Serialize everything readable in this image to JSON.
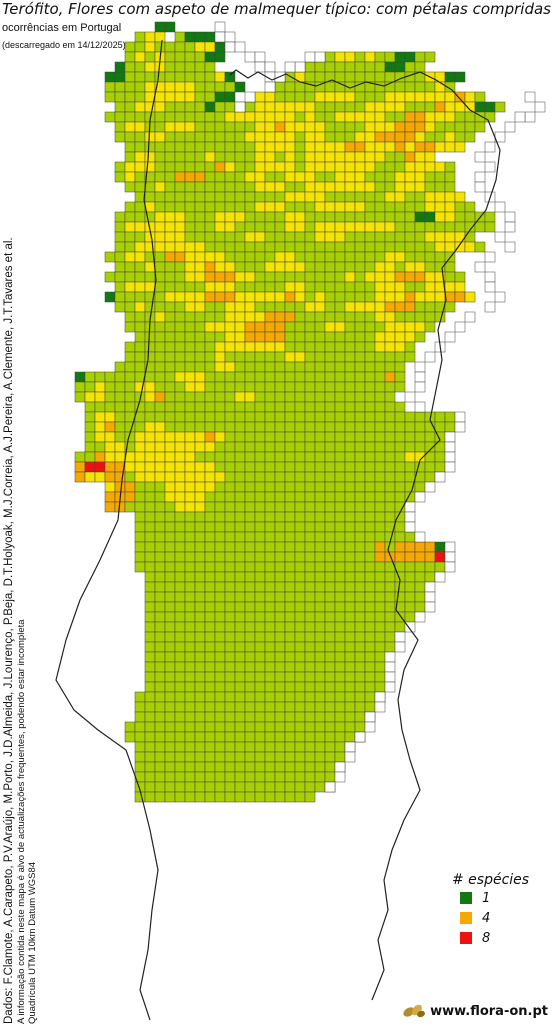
{
  "header": {
    "title": "Terófito, Flores com aspeto de malmequer típico: com pétalas compridas",
    "subtitle": "ocorrências em Portugal",
    "downloaded": "(descarregado em 14/12/2025)"
  },
  "credits": {
    "data_sources": "Dados: F.Clamote, A.Carapeto, P.V.Araújo, M.Porto, J.D.Almeida, J.Lourenço, P.Beja, D.T.Holyoak, M.J.Correia, A.J.Pereira, A.Clemente, J.T.Tavares et al.",
    "disclaimer": "A informação contida neste mapa é alvo de actualizações frequentes, podendo estar incompleta",
    "grid_info": "Quadrícula UTM 10km Datum WGS84"
  },
  "legend": {
    "title": "# espécies",
    "items": [
      {
        "label": "1",
        "color": "#127812"
      },
      {
        "label": "4",
        "color": "#f5a800"
      },
      {
        "label": "8",
        "color": "#ee1111"
      }
    ]
  },
  "footer": {
    "site": "www.flora-on.pt",
    "logo_icon": "flora-on-leaves-icon"
  },
  "colors": {
    "scale": [
      "#127812",
      "#a8cf00",
      "#f5e300",
      "#f5a800",
      "#ee1111"
    ],
    "grid_line": "#444444",
    "border": "#222222"
  },
  "map_rows": [
    "...........AA.......................................",
    ".........BCC.BAAA...................................",
    "........BBCBBBBCCA..................................",
    "........BCBCBBBBAA..........BCCBCBBAABB.............",
    ".......ABBCCBBBBB.........BBBBBBBBAABB..............",
    "......AABBBBBBBBBCA.....BCBBBBBBBBBBBBCCAA..........",
    "......BBBBCCCCCBBBBA...BBBBBBBBBBBBBBBBCB...........",
    "......BBBBCCCCCBBAA..CCBBBBCCCCBBBCCCCCCCDCB........",
    ".......BBCCCBBBBABBCBCCCCCCBBBBBCCCCBBBDCCCAAB.......",
    "......BBBBBBBBBBBBCCCCCCCBCBBCCCCCBBDDCCCBBBB.......",
    ".......BCCBBCCCBBBBBBCCDCCCCBBBBCCCDDDCBBBBB.........",
    ".......BBBCCBBBBBBBBCCCCCBCCBBBCCDDDDCBBCBB..........",
    "........BBBBBBBBBBBBBCCCCBCCCCDDCCCDCDDCCC...........",
    "........BCCBBBBBCBBBBCCBCBCCCCCCCCBBDCC..............",
    ".......BCCCBBBBBBDCBBCCCCBCCCCCCCBBBCCCCB............",
    ".......BCBBBBDDDBBBBCCBBCCCBBCCCBBBCCCBBB............",
    "........BBBCBBBBBBBBBCCCBBCCCCCCCBBCCCBBB............",
    ".........BBBBBBBBBBBBBBBCCCCBBBBBBCCBBCCCC...........",
    "........BBCBBBBBBBBBBCCCBBBCCCCCBBBBBBCCCBB..........",
    ".......BBBBCCCBBBCCCBBBBCCBBBBBBBBBBBAACCBBBB........",
    ".......BCCCCCCBBBCCBBBBBCCBCCCCCCCCBBBBBBBBBB........",
    ".......BBBCCCCBBBBBBCCBBBBBCCCBBBBBBBBCCCCB..........",
    ".......BBCCCCCCCBBBBBBBBBBBBBBBBBBBBBBBCCCCB.........",
    "......BBCCBBDDCCCCBBBBBCCBBBBBBBBBCCBBBBB............",
    ".......BBBCBBBCCDCCBBBCCCCBBBBBBBCCBCCBBB............",
    "......BBBBBBBBCCDDDCCBBBBBBBBBCBCCCDDDCCBB...........",
    ".......BCCCBBBBBCCCBBBBBCCBBBBBBBCCCBBCCCC...........",
    "......ABBBBBCCCCDDDCCCCCDCBCBBBBBCCCDCCCDDC..........",
    ".......BBCBBBBCCBBCCCBBBBBCCBBCCCCDDDBBBB............",
    "........BBBCBBBBBBCCCCDDDBBBBBBBBCCBBBBB.............",
    "........BBBBBBBBCCCCDDDDBBBBCCBBBBCCCCB..............",
    ".........BBBBBBBBBCCDDDDBBBBBBBBBCCCCB...............",
    "........BBBBBBBBBCCCCCCCBBBBBBBBBCCCB................",
    "........BBBBBBBBBCBBBBBBCCBBBBBBBBBBB................",
    ".......BBBBBBBBBBCCBBBBBBBBBBBBBBBBB.................",
    "...ABBBBBBBBBCCCBBBBBBBBBBBBBBBBBBDB.................",
    "...BBCBBBCCBBBCCBBBBBBBBBBBBBBBBBBBB.................",
    "...BCCBBBBCDBBBBBBBCCBBBBBBBBBBBBBB..................",
    "....BBBBBBBBBBBBBBBBBBBBBBBBBBBBBBBB.................",
    "....BCCBBBBBBBBBBBBBBBBBBBBBBBBBBBBBBBBBB............",
    "....BCDBBBCCBBBBBBBBBBBBBBBBBBBBBBBBBBBBB............",
    "....BCCBBCCCCCCCDCBBBBBBBBBBBBBBBBBBBBBB.............",
    "....BBCCBCCCCCCCCBBBBBBBBBBBBBBBBBBBBBBB.............",
    "...BBDCCCCCCCCCBBBBBBBBBBBBBBBBBBBBBCCBB.............",
    "...DEEDDCCCCCCCCCBBBBBBBBBBBBBBBBBBBBBBB.............",
    "...DCCDDBCCCCCCCCCBBBBBBBBBBBBBBBBBBBBB..............",
    "......CDDBBBCCCCCBBBBBBBBBBBBBBBBBBBBB...............",
    "......DDDBBBCCCCBBBBBBBBBBBBBBBBBBBBB................",
    "......DDBBBBBCCCBBBBBBBBBBBBBBBBBBBB.................",
    ".........BBBBBBBBBBBBBBBBBBBBBBBBBBB.................",
    ".........BBBBBBBBBBBBBBBBBBBBBBBBBBB.................",
    ".........BBBBBBBBBBBBBBBBBBBBBBBBBBBB................",
    ".........BBBBBBBBBBBBBBBBBBBBBBBBDBDDDDA.............",
    ".........BBBBBBBBBBBBBBBBBBBBBBBBDDDDDDE.............",
    ".........BBBBBBBBBBBBBBBBBBBBBBBBBBBBBBB.............",
    "..........BBBBBBBBBBBBBBBBBBBBBBBBBBBBB..............",
    "..........BBBBBBBBBBBBBBBBBBBBBBBBBBBB...............",
    "..........BBBBBBBBBBBBBBBBBBBBBBBBBBBB...............",
    "..........BBBBBBBBBBBBBBBBBBBBBBBBBBBB...............",
    "..........BBBBBBBBBBBBBBBBBBBBBBBBBBB................",
    "..........BBBBBBBBBBBBBBBBBBBBBBBBBB.................",
    "..........BBBBBBBBBBBBBBBBBBBBBBBBB..................",
    "..........BBBBBBBBBBBBBBBBBBBBBBBBB..................",
    "..........BBBBBBBBBBBBBBBBBBBBBBBB...................",
    "..........BBBBBBBBBBBBBBBBBBBBBBBB...................",
    "..........BBBBBBBBBBBBBBBBBBBBBBBB...................",
    "..........BBBBBBBBBBBBBBBBBBBBBBBB...................",
    ".........BBBBBBBBBBBBBBBBBBBBBBBBB...................",
    ".........BBBBBBBBBBBBBBBBBBBBBBBB....................",
    ".........BBBBBBBBBBBBBBBBBBBBBBBB....................",
    "........BBBBBBBBBBBBBBBBBBBBBBBB.....................",
    "........BBBBBBBBBBBBBBBBBBBBBBBB.....................",
    ".........BBBBBBBBBBBBBBBBBBBBBB......................",
    ".........BBBBBBBBBBBBBBBBBBBBB.......................",
    ".........BBBBBBBBBBBBBBBBBBBBB.......................",
    ".........BBBBBBBBBBBBBBBBBBBB........................",
    ".........BBBBBBBBBBBBBBBBBBBB........................",
    ".........BBBBBBBBBBBBBBBBBB.........................."
  ],
  "blank_squares": [
    [
      0,
      17
    ],
    [
      1,
      17
    ],
    [
      1,
      18
    ],
    [
      2,
      18
    ],
    [
      2,
      19
    ],
    [
      3,
      20
    ],
    [
      3,
      21
    ],
    [
      4,
      21
    ],
    [
      4,
      22
    ],
    [
      5,
      22
    ],
    [
      5,
      23
    ],
    [
      6,
      22
    ],
    [
      7,
      20
    ],
    [
      8,
      19
    ],
    [
      3,
      26
    ],
    [
      3,
      27
    ],
    [
      4,
      25
    ],
    [
      4,
      24
    ],
    [
      7,
      48
    ],
    [
      8,
      49
    ],
    [
      9,
      48
    ],
    [
      9,
      47
    ],
    [
      10,
      46
    ],
    [
      11,
      45
    ],
    [
      12,
      44
    ],
    [
      13,
      43
    ],
    [
      14,
      44
    ],
    [
      15,
      43
    ],
    [
      16,
      43
    ],
    [
      17,
      44
    ],
    [
      18,
      45
    ],
    [
      19,
      46
    ],
    [
      20,
      46
    ],
    [
      21,
      45
    ],
    [
      22,
      46
    ],
    [
      23,
      44
    ],
    [
      24,
      43
    ],
    [
      25,
      44
    ],
    [
      26,
      44
    ],
    [
      27,
      45
    ],
    [
      28,
      44
    ],
    [
      29,
      42
    ],
    [
      30,
      41
    ],
    [
      31,
      40
    ],
    [
      32,
      39
    ],
    [
      33,
      38
    ],
    [
      34,
      37
    ],
    [
      35,
      37
    ],
    [
      36,
      37
    ],
    [
      37,
      36
    ],
    [
      38,
      37
    ],
    [
      39,
      41
    ],
    [
      40,
      41
    ],
    [
      41,
      40
    ],
    [
      42,
      40
    ],
    [
      43,
      40
    ],
    [
      44,
      40
    ],
    [
      45,
      39
    ],
    [
      46,
      38
    ],
    [
      47,
      37
    ],
    [
      48,
      36
    ],
    [
      49,
      36
    ],
    [
      50,
      36
    ],
    [
      51,
      37
    ],
    [
      52,
      40
    ],
    [
      53,
      40
    ],
    [
      54,
      40
    ],
    [
      55,
      39
    ],
    [
      56,
      38
    ],
    [
      57,
      38
    ],
    [
      58,
      38
    ],
    [
      59,
      37
    ],
    [
      60,
      36
    ],
    [
      61,
      35
    ],
    [
      62,
      35
    ],
    [
      63,
      34
    ],
    [
      64,
      34
    ],
    [
      65,
      34
    ],
    [
      66,
      34
    ],
    [
      67,
      33
    ],
    [
      68,
      33
    ],
    [
      69,
      32
    ],
    [
      70,
      32
    ],
    [
      71,
      31
    ],
    [
      72,
      30
    ],
    [
      73,
      30
    ],
    [
      74,
      29
    ],
    [
      75,
      29
    ],
    [
      76,
      28
    ]
  ]
}
